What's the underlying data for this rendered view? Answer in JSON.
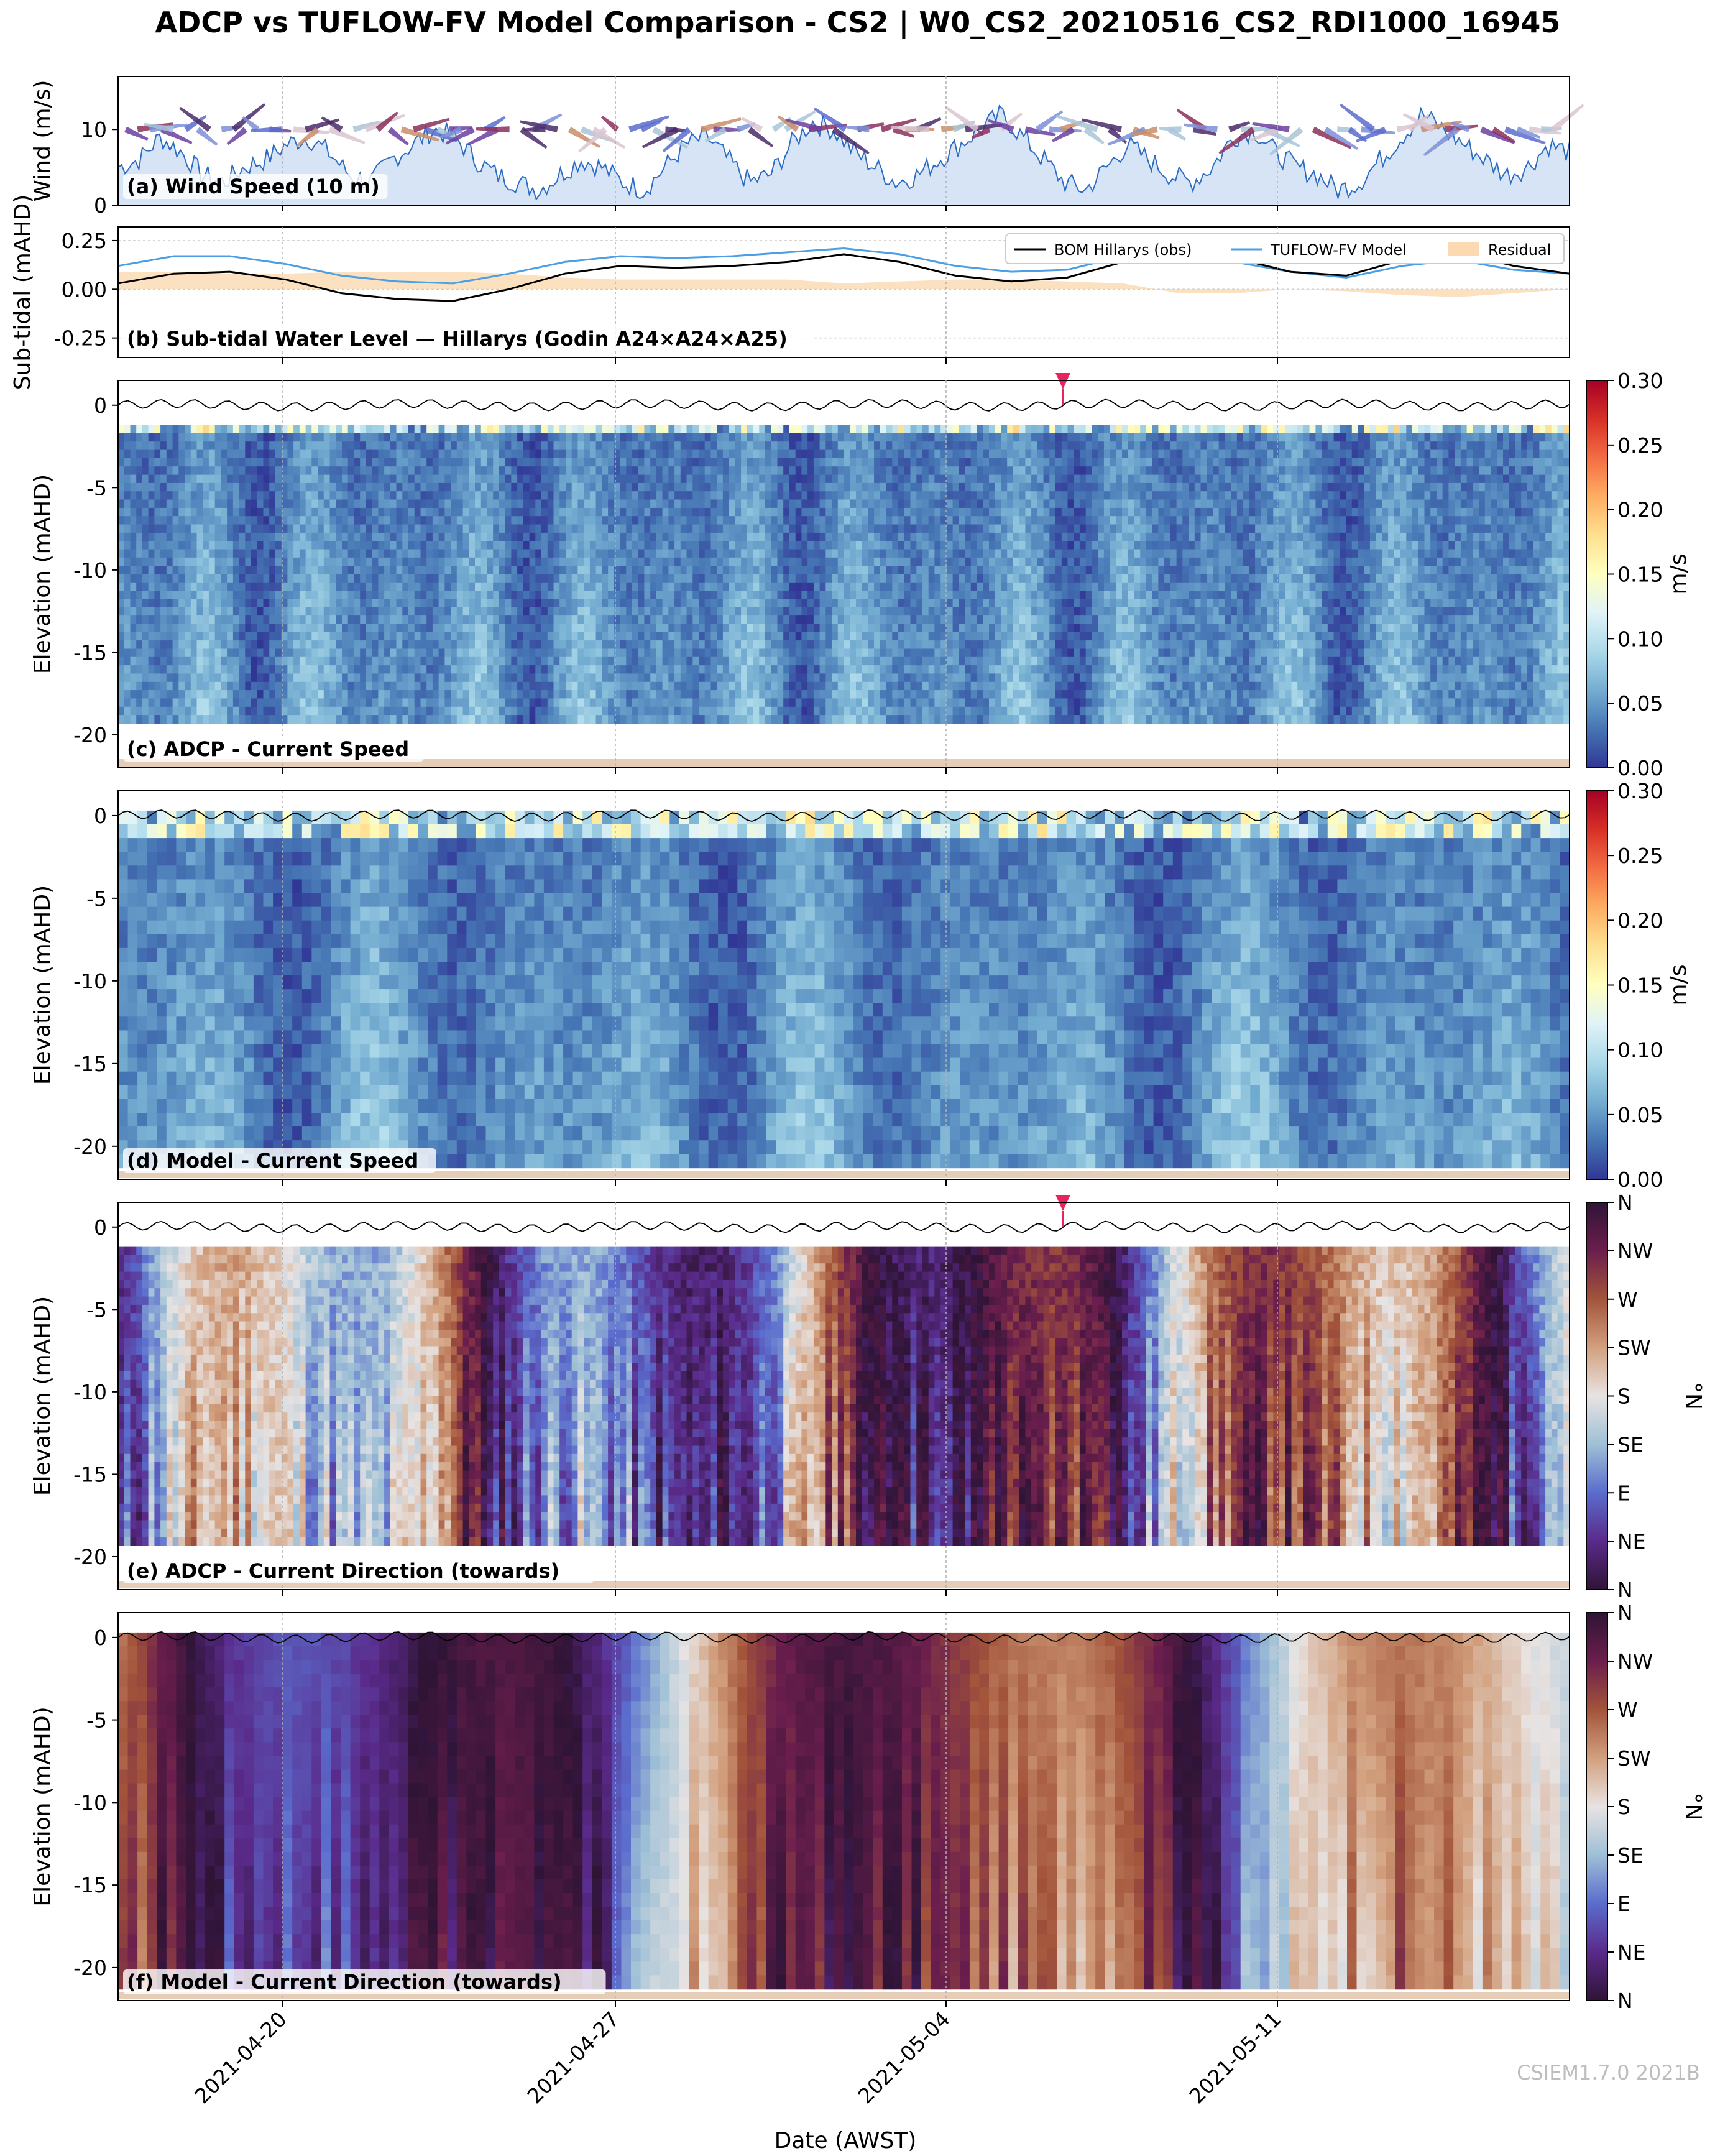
{
  "figure": {
    "title": "ADCP vs TUFLOW-FV Model Comparison - CS2 | W0_CS2_20210516_CS2_RDI1000_16945",
    "watermark": "CSIEM1.7.0 2021B",
    "xlabel": "Date (AWST)",
    "x_ticks": [
      "2021-04-20",
      "2021-04-27",
      "2021-05-04",
      "2021-05-11"
    ]
  },
  "colors": {
    "speed_cmap": [
      "#313695",
      "#4575b4",
      "#74add1",
      "#abd9e9",
      "#e0f3f8",
      "#ffffbf",
      "#fee090",
      "#fdae61",
      "#f46d43",
      "#d73027",
      "#a50026"
    ],
    "direction_cmap": [
      "#2f1436",
      "#5a2a8a",
      "#5a6ccd",
      "#9ec0d6",
      "#e8e3e2",
      "#d2a07e",
      "#a3543a",
      "#6b1e4d",
      "#2f1436"
    ],
    "obs_line": "#000000",
    "model_line": "#4a9fe6",
    "residual_fill": "#fbd9b1",
    "wind_fill": "#d6e4f5",
    "wind_line": "#2b6cc4",
    "marker": "#e8235d",
    "seabed": "#e6cdb7"
  },
  "chart_data": [
    {
      "panel": "a",
      "type": "area",
      "annotation": "(a) Wind Speed (10 m)",
      "ylabel": "Wind (m/s)",
      "ylim": [
        0,
        17
      ],
      "yticks": [
        "0",
        "10"
      ],
      "x_start": "2021-04-15",
      "x_end": "2021-05-19",
      "series": [
        {
          "values": [
            5,
            6,
            9,
            7,
            4,
            3,
            5,
            6,
            8,
            9,
            7,
            4,
            3,
            6,
            8,
            10,
            9,
            6,
            4,
            3,
            2,
            4,
            6,
            5,
            3,
            2,
            5,
            8,
            9,
            6,
            3,
            4,
            8,
            11,
            10,
            7,
            5,
            3,
            4,
            6,
            8,
            10,
            12,
            9,
            6,
            3,
            2,
            5,
            8,
            6,
            4,
            3,
            5,
            9,
            10,
            7,
            5,
            4,
            2,
            3,
            6,
            9,
            12,
            10,
            8,
            6,
            4,
            5,
            8,
            7
          ]
        }
      ]
    },
    {
      "panel": "b",
      "type": "line",
      "annotation": "(b) Sub-tidal Water Level — Hillarys (Godin A24×A24×A25)",
      "ylabel": "Sub-tidal (mAHD)",
      "ylim": [
        -0.35,
        0.32
      ],
      "yticks": [
        "0.25",
        "0.00",
        "-0.25"
      ],
      "legend": [
        "BOM Hillarys (obs)",
        "TUFLOW-FV Model",
        "Residual"
      ],
      "legend_position": "top-right",
      "series": [
        {
          "name": "BOM Hillarys (obs)",
          "values": [
            0.03,
            0.08,
            0.09,
            0.05,
            -0.02,
            -0.05,
            -0.06,
            0.0,
            0.08,
            0.12,
            0.11,
            0.12,
            0.14,
            0.18,
            0.14,
            0.07,
            0.04,
            0.06,
            0.14,
            0.21,
            0.16,
            0.09,
            0.07,
            0.15,
            0.19,
            0.12,
            0.08
          ]
        },
        {
          "name": "TUFLOW-FV Model",
          "values": [
            0.12,
            0.17,
            0.17,
            0.13,
            0.07,
            0.04,
            0.03,
            0.08,
            0.14,
            0.17,
            0.16,
            0.17,
            0.19,
            0.21,
            0.18,
            0.12,
            0.09,
            0.1,
            0.17,
            0.19,
            0.14,
            0.09,
            0.06,
            0.12,
            0.15,
            0.1,
            0.08
          ]
        },
        {
          "name": "Residual",
          "values": [
            0.09,
            0.09,
            0.08,
            0.08,
            0.09,
            0.09,
            0.09,
            0.08,
            0.06,
            0.05,
            0.05,
            0.05,
            0.05,
            0.03,
            0.04,
            0.05,
            0.05,
            0.04,
            0.03,
            -0.02,
            -0.02,
            0.0,
            -0.01,
            -0.03,
            -0.04,
            -0.02,
            0.0
          ]
        }
      ]
    },
    {
      "panel": "c",
      "type": "heatmap",
      "annotation": "(c) ADCP - Current Speed",
      "ylabel": "Elevation (mAHD)",
      "ylim": [
        -22,
        1.5
      ],
      "yticks": [
        "0",
        "-5",
        "-10",
        "-15",
        "-20"
      ],
      "colorbar": {
        "label": "m/s",
        "ticks": [
          "0.30",
          "0.25",
          "0.20",
          "0.15",
          "0.10",
          "0.05",
          "0.00"
        ],
        "range": [
          0,
          0.3
        ]
      },
      "data_bottom": -19.3,
      "data_top": -1.2
    },
    {
      "panel": "d",
      "type": "heatmap",
      "annotation": "(d) Model - Current Speed",
      "ylabel": "Elevation (mAHD)",
      "ylim": [
        -22,
        1.5
      ],
      "yticks": [
        "0",
        "-5",
        "-10",
        "-15",
        "-20"
      ],
      "colorbar": {
        "label": "m/s",
        "ticks": [
          "0.30",
          "0.25",
          "0.20",
          "0.15",
          "0.10",
          "0.05",
          "0.00"
        ],
        "range": [
          0,
          0.3
        ]
      },
      "data_bottom": -21.3,
      "data_top": 0.3
    },
    {
      "panel": "e",
      "type": "heatmap",
      "annotation": "(e) ADCP - Current Direction (towards)",
      "ylabel": "Elevation (mAHD)",
      "ylim": [
        -22,
        1.5
      ],
      "yticks": [
        "0",
        "-5",
        "-10",
        "-15",
        "-20"
      ],
      "colorbar": {
        "label": "°N",
        "ticks": [
          "N",
          "NW",
          "W",
          "SW",
          "S",
          "SE",
          "E",
          "NE",
          "N"
        ],
        "range": [
          0,
          360
        ]
      },
      "data_bottom": -19.3,
      "data_top": -1.2
    },
    {
      "panel": "f",
      "type": "heatmap",
      "annotation": "(f) Model - Current Direction (towards)",
      "ylabel": "Elevation (mAHD)",
      "ylim": [
        -22,
        1.5
      ],
      "yticks": [
        "0",
        "-5",
        "-10",
        "-15",
        "-20"
      ],
      "colorbar": {
        "label": "°N",
        "ticks": [
          "N",
          "NW",
          "W",
          "SW",
          "S",
          "SE",
          "E",
          "NE",
          "N"
        ],
        "range": [
          0,
          360
        ]
      },
      "data_bottom": -21.3,
      "data_top": 0.3
    }
  ]
}
